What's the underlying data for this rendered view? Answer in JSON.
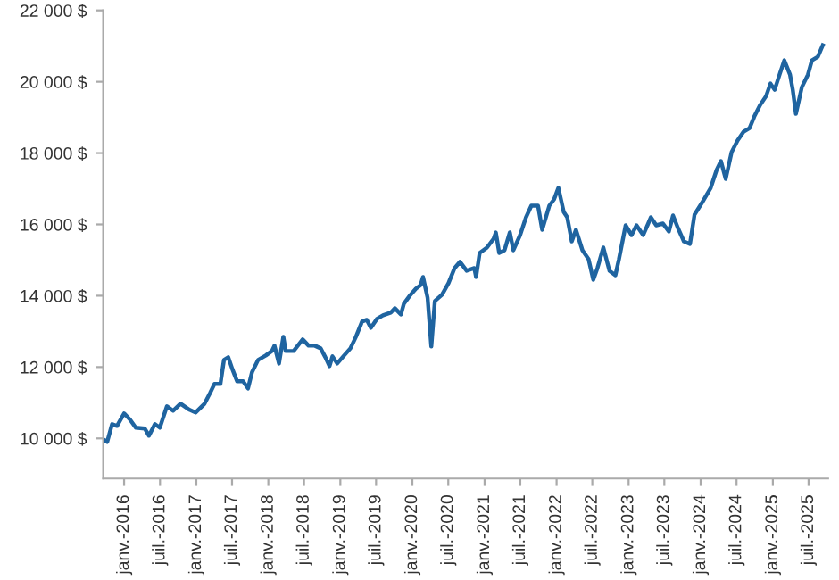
{
  "chart_data": {
    "type": "line",
    "x": [
      "2015-09-17",
      "2015-10-07",
      "2015-11-01",
      "2015-11-26",
      "2016-01-01",
      "2016-01-31",
      "2016-02-29",
      "2016-04-15",
      "2016-05-06",
      "2016-06-05",
      "2016-06-30",
      "2016-08-05",
      "2016-09-05",
      "2016-10-13",
      "2016-11-28",
      "2016-12-28",
      "2017-02-12",
      "2017-03-12",
      "2017-04-03",
      "2017-05-03",
      "2017-05-21",
      "2017-06-12",
      "2017-07-02",
      "2017-07-27",
      "2017-08-26",
      "2017-09-20",
      "2017-10-10",
      "2017-11-10",
      "2017-12-19",
      "2018-01-19",
      "2018-02-01",
      "2018-02-24",
      "2018-03-18",
      "2018-03-30",
      "2018-05-09",
      "2018-06-24",
      "2018-07-24",
      "2018-08-24",
      "2018-09-23",
      "2018-10-17",
      "2018-11-07",
      "2018-11-22",
      "2018-12-16",
      "2019-01-16",
      "2019-02-21",
      "2019-03-21",
      "2019-04-21",
      "2019-05-15",
      "2019-06-05",
      "2019-07-05",
      "2019-08-05",
      "2019-09-13",
      "2019-10-04",
      "2019-11-04",
      "2019-11-19",
      "2019-12-19",
      "2020-01-19",
      "2020-02-12",
      "2020-02-24",
      "2020-03-18",
      "2020-04-06",
      "2020-04-24",
      "2020-05-30",
      "2020-07-02",
      "2020-08-02",
      "2020-08-29",
      "2020-10-02",
      "2020-11-10",
      "2020-11-19",
      "2020-12-07",
      "2021-01-13",
      "2021-02-16",
      "2021-02-27",
      "2021-03-16",
      "2021-04-12",
      "2021-05-09",
      "2021-05-27",
      "2021-06-30",
      "2021-07-30",
      "2021-08-26",
      "2021-09-29",
      "2021-10-20",
      "2021-11-25",
      "2021-12-19",
      "2022-01-10",
      "2022-02-06",
      "2022-02-24",
      "2022-03-19",
      "2022-04-09",
      "2022-05-12",
      "2022-06-12",
      "2022-07-06",
      "2022-07-27",
      "2022-08-26",
      "2022-09-26",
      "2022-10-26",
      "2022-11-13",
      "2022-12-17",
      "2023-01-16",
      "2023-02-10",
      "2023-03-16",
      "2023-04-24",
      "2023-05-21",
      "2023-06-24",
      "2023-07-24",
      "2023-08-14",
      "2023-09-08",
      "2023-10-08",
      "2023-11-08",
      "2023-12-01",
      "2024-01-07",
      "2024-02-21",
      "2024-03-22",
      "2024-04-13",
      "2024-05-07",
      "2024-06-06",
      "2024-07-06",
      "2024-08-06",
      "2024-09-05",
      "2024-09-29",
      "2024-10-29",
      "2024-11-28",
      "2024-12-20",
      "2025-01-10",
      "2025-02-04",
      "2025-02-28",
      "2025-03-29",
      "2025-04-12",
      "2025-04-28",
      "2025-05-28",
      "2025-06-28",
      "2025-07-18",
      "2025-08-17",
      "2025-09-11"
    ],
    "series": [
      {
        "color": "#1f64a0",
        "values": [
          9975,
          9900,
          10400,
          10350,
          10700,
          10525,
          10300,
          10275,
          10075,
          10400,
          10300,
          10900,
          10775,
          10975,
          10800,
          10725,
          10975,
          11275,
          11525,
          11525,
          12200,
          12275,
          11950,
          11600,
          11600,
          11400,
          11850,
          12200,
          12325,
          12450,
          12600,
          12100,
          12850,
          12450,
          12450,
          12775,
          12600,
          12600,
          12525,
          12275,
          12025,
          12300,
          12100,
          12300,
          12525,
          12850,
          13275,
          13325,
          13100,
          13350,
          13450,
          13525,
          13650,
          13475,
          13775,
          14000,
          14200,
          14300,
          14525,
          13950,
          12575,
          13850,
          14025,
          14350,
          14775,
          14950,
          14700,
          14775,
          14525,
          15200,
          15350,
          15600,
          15775,
          15200,
          15275,
          15775,
          15275,
          15700,
          16200,
          16525,
          16525,
          15850,
          16525,
          16700,
          17025,
          16350,
          16200,
          15525,
          15850,
          15275,
          15025,
          14450,
          14775,
          15350,
          14700,
          14575,
          15025,
          15975,
          15700,
          15975,
          15700,
          16200,
          15975,
          16025,
          15800,
          16250,
          15900,
          15525,
          15450,
          16275,
          16600,
          17025,
          17525,
          17775,
          17275,
          18025,
          18350,
          18600,
          18700,
          19025,
          19350,
          19600,
          19950,
          19775,
          20200,
          20600,
          20200,
          19775,
          19100,
          19850,
          20200,
          20600,
          20700,
          21025
        ]
      }
    ],
    "xlim": [
      "2015-09-17",
      "2025-10-08"
    ],
    "xticks": [
      {
        "value": "2016-01-01",
        "label": "janv.-2016"
      },
      {
        "value": "2016-07-01",
        "label": "juil.-2016"
      },
      {
        "value": "2017-01-01",
        "label": "janv.-2017"
      },
      {
        "value": "2017-07-01",
        "label": "juil.-2017"
      },
      {
        "value": "2018-01-01",
        "label": "janv.-2018"
      },
      {
        "value": "2018-07-01",
        "label": "juil.-2018"
      },
      {
        "value": "2019-01-01",
        "label": "janv.-2019"
      },
      {
        "value": "2019-07-01",
        "label": "juil.-2019"
      },
      {
        "value": "2020-01-01",
        "label": "janv.-2020"
      },
      {
        "value": "2020-07-01",
        "label": "juil.-2020"
      },
      {
        "value": "2021-01-01",
        "label": "janv.-2021"
      },
      {
        "value": "2021-07-01",
        "label": "juil.-2021"
      },
      {
        "value": "2022-01-01",
        "label": "janv.-2022"
      },
      {
        "value": "2022-07-01",
        "label": "juil.-2022"
      },
      {
        "value": "2023-01-01",
        "label": "janv.-2023"
      },
      {
        "value": "2023-07-01",
        "label": "juil.-2023"
      },
      {
        "value": "2024-01-01",
        "label": "janv.-2024"
      },
      {
        "value": "2024-07-01",
        "label": "juil.-2024"
      },
      {
        "value": "2025-01-01",
        "label": "janv.-2025"
      },
      {
        "value": "2025-07-01",
        "label": "juil.-2025"
      }
    ],
    "ylim": [
      8875,
      22000
    ],
    "yticks": [
      {
        "value": 10000,
        "label": "10 000 $"
      },
      {
        "value": 12000,
        "label": "12 000 $"
      },
      {
        "value": 14000,
        "label": "14 000 $"
      },
      {
        "value": 16000,
        "label": "16 000 $"
      },
      {
        "value": 18000,
        "label": "18 000 $"
      },
      {
        "value": 20000,
        "label": "20 000 $"
      },
      {
        "value": 22000,
        "label": "22 000 $"
      }
    ],
    "grid": false,
    "legend": false,
    "marker": "none",
    "line_style": "solid"
  }
}
